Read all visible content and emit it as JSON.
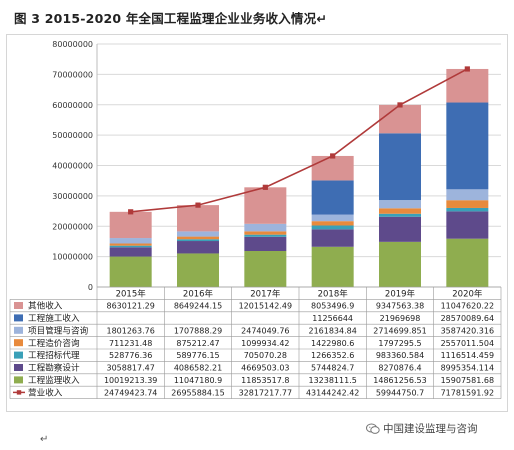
{
  "title": "图 3   2015-2020 年全国工程监理企业业务收入情况↵",
  "chart_data": {
    "type": "bar",
    "stacked": true,
    "categories": [
      "2015年",
      "2016年",
      "2017年",
      "2018年",
      "2019年",
      "2020年"
    ],
    "ylim": [
      0,
      80000000
    ],
    "yticks": [
      "0",
      "10000000",
      "20000000",
      "30000000",
      "40000000",
      "50000000",
      "60000000",
      "70000000",
      "80000000"
    ],
    "grid": true,
    "legend": "table-bottom",
    "series": [
      {
        "name": "工程监理收入",
        "color": "#8fad4f",
        "values": [
          10019213.39,
          11047180.9,
          11853517.8,
          13238111.5,
          14861256.53,
          15907581.68
        ],
        "labels": [
          "10019213.39",
          "11047180.9",
          "11853517.8",
          "13238111.5",
          "14861256.53",
          "15907581.68"
        ]
      },
      {
        "name": "工程勘察设计",
        "color": "#5e4a8b",
        "values": [
          3058817.47,
          4086582.21,
          4669503.03,
          5744824.7,
          8270876.4,
          8995354.114
        ],
        "labels": [
          "3058817.47",
          "4086582.21",
          "4669503.03",
          "5744824.7",
          "8270876.4",
          "8995354.114"
        ]
      },
      {
        "name": "工程招标代理",
        "color": "#3aa0b8",
        "values": [
          528776.36,
          589776.15,
          705070.28,
          1266352.6,
          983360.584,
          1116514.459
        ],
        "labels": [
          "528776.36",
          "589776.15",
          "705070.28",
          "1266352.6",
          "983360.584",
          "1116514.459"
        ]
      },
      {
        "name": "工程造价咨询",
        "color": "#e88a3c",
        "values": [
          711231.48,
          875212.47,
          1099934.42,
          1422980.6,
          1797295.5,
          2557011.504
        ],
        "labels": [
          "711231.48",
          "875212.47",
          "1099934.42",
          "1422980.6",
          "1797295.5",
          "2557011.504"
        ]
      },
      {
        "name": "项目管理与咨询",
        "color": "#9db4dc",
        "values": [
          1801263.76,
          1707888.29,
          2474049.76,
          2161834.84,
          2714699.851,
          3587420.316
        ],
        "labels": [
          "1801263.76",
          "1707888.29",
          "2474049.76",
          "2161834.84",
          "2714699.851",
          "3587420.316"
        ]
      },
      {
        "name": "工程施工收入",
        "color": "#3e6db3",
        "values": [
          0,
          0,
          0,
          11256644,
          21969698,
          28570089.64
        ],
        "labels": [
          "",
          "",
          "",
          "11256644",
          "21969698",
          "28570089.64"
        ]
      },
      {
        "name": "其他收入",
        "color": "#d99393",
        "values": [
          8630121.29,
          8649244.15,
          12015142.49,
          8053496.9,
          9347563.38,
          11047620.22
        ],
        "labels": [
          "8630121.29",
          "8649244.15",
          "12015142.49",
          "8053496.9",
          "9347563.38",
          "11047620.22"
        ]
      }
    ],
    "line": {
      "name": "营业收入",
      "color": "#b03a3a",
      "values": [
        24749423.74,
        26955884.15,
        32817217.77,
        43144242.42,
        59944750.7,
        71781591.92
      ],
      "labels": [
        "24749423.74",
        "26955884.15",
        "32817217.77",
        "43144242.42",
        "59944750.7",
        "71781591.92"
      ]
    }
  },
  "footer": {
    "return_mark": "↵",
    "watermark": "中国建设监理与咨询",
    "watermark_icon": "wechat-icon"
  }
}
